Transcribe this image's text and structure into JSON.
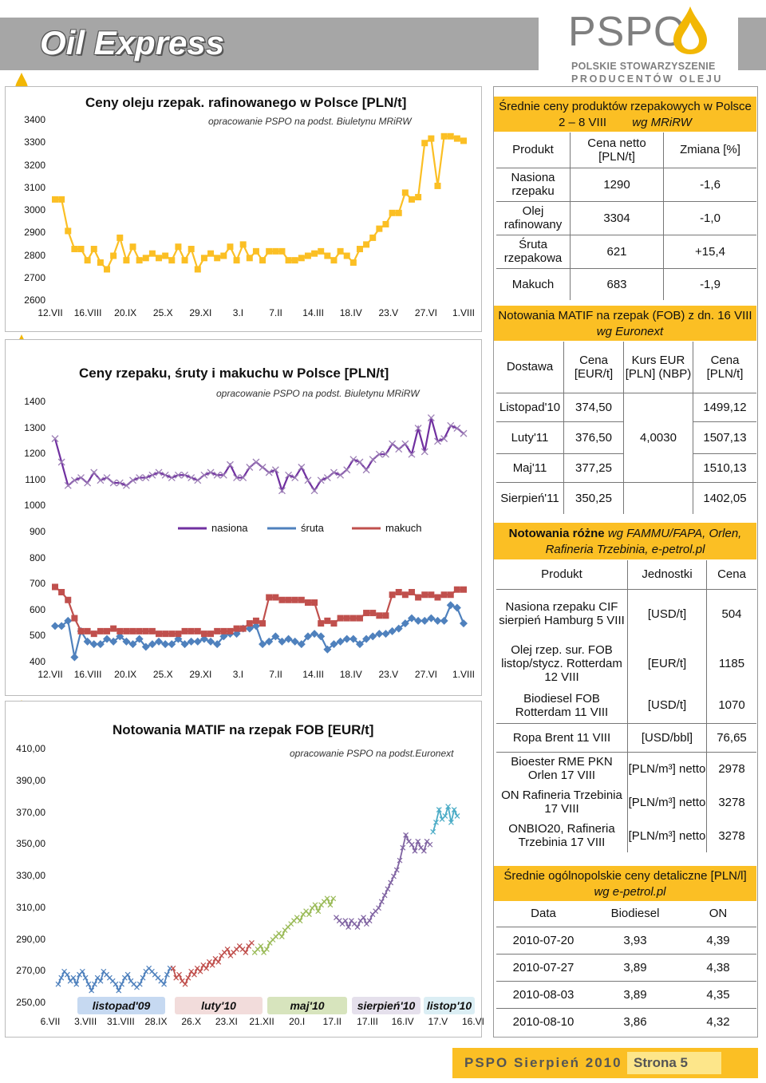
{
  "header": {
    "title": "Oil Express",
    "logo": "PSPO",
    "logo_sub1": "POLSKIE STOWARZYSZENIE",
    "logo_sub2": "PRODUCENTÓW OLEJU"
  },
  "chart1": {
    "title": "Ceny oleju rzepak. rafinowanego w Polsce [PLN/t]",
    "note": "opracowanie PSPO na podst. Biuletynu MRiRW",
    "chart_data": {
      "type": "line",
      "yticks": [
        "3400",
        "3300",
        "3200",
        "3100",
        "3000",
        "2900",
        "2800",
        "2700",
        "2600"
      ],
      "xticks": [
        "12.VII",
        "16.VIII",
        "20.IX",
        "25.X",
        "29.XI",
        "3.I",
        "7.II",
        "14.III",
        "18.IV",
        "23.V",
        "27.VI",
        "1.VIII"
      ],
      "ylim": [
        2600,
        3400
      ],
      "series": [
        {
          "values": [
            3050,
            3050,
            2910,
            2830,
            2830,
            2780,
            2830,
            2770,
            2740,
            2800,
            2880,
            2780,
            2840,
            2780,
            2790,
            2810,
            2790,
            2800,
            2780,
            2840,
            2780,
            2830,
            2740,
            2790,
            2810,
            2790,
            2800,
            2840,
            2780,
            2850,
            2790,
            2820,
            2780,
            2820,
            2820,
            2820,
            2780,
            2780,
            2790,
            2800,
            2810,
            2820,
            2800,
            2780,
            2820,
            2800,
            2770,
            2830,
            2850,
            2880,
            2920,
            2940,
            2990,
            2990,
            3080,
            3050,
            3060,
            3300,
            3320,
            3110,
            3330,
            3330,
            3320,
            3310
          ]
        }
      ]
    }
  },
  "chart2": {
    "title": "Ceny rzepaku, śruty i makuchu w Polsce [PLN/t]",
    "note": "opracowanie PSPO na podst. Biuletynu MRiRW",
    "chart_data": {
      "type": "line",
      "yticks": [
        "1400",
        "1300",
        "1200",
        "1100",
        "1000",
        "900",
        "800",
        "700",
        "600",
        "500",
        "400"
      ],
      "xticks": [
        "12.VII",
        "16.VIII",
        "20.IX",
        "25.X",
        "29.XI",
        "3.I",
        "7.II",
        "14.III",
        "18.IV",
        "23.V",
        "27.VI",
        "1.VIII"
      ],
      "ylim": [
        400,
        1400
      ],
      "legend": [
        "nasiona",
        "śruta",
        "makuch"
      ],
      "series": [
        {
          "name": "nasiona",
          "color": "#7030a0",
          "values": [
            1260,
            1170,
            1080,
            1100,
            1110,
            1090,
            1130,
            1100,
            1110,
            1090,
            1090,
            1080,
            1100,
            1110,
            1110,
            1120,
            1130,
            1120,
            1110,
            1120,
            1120,
            1110,
            1100,
            1120,
            1130,
            1120,
            1120,
            1160,
            1110,
            1110,
            1150,
            1170,
            1150,
            1130,
            1140,
            1060,
            1120,
            1110,
            1150,
            1100,
            1060,
            1100,
            1110,
            1130,
            1120,
            1140,
            1180,
            1170,
            1140,
            1180,
            1200,
            1200,
            1240,
            1220,
            1240,
            1200,
            1300,
            1210,
            1340,
            1250,
            1260,
            1310,
            1300,
            1280
          ]
        },
        {
          "name": "śruta",
          "color": "#4f81bd",
          "values": [
            540,
            540,
            560,
            420,
            520,
            480,
            470,
            470,
            490,
            480,
            500,
            480,
            470,
            490,
            460,
            470,
            480,
            470,
            470,
            490,
            470,
            480,
            480,
            490,
            480,
            470,
            500,
            510,
            510,
            530,
            530,
            540,
            470,
            480,
            500,
            480,
            490,
            480,
            470,
            500,
            510,
            500,
            450,
            470,
            480,
            490,
            490,
            470,
            490,
            500,
            510,
            510,
            520,
            530,
            550,
            570,
            560,
            560,
            570,
            560,
            560,
            620,
            610,
            550
          ]
        },
        {
          "name": "makuch",
          "color": "#c0504d",
          "values": [
            690,
            670,
            640,
            570,
            520,
            520,
            510,
            520,
            520,
            530,
            520,
            520,
            520,
            520,
            520,
            520,
            510,
            510,
            510,
            510,
            520,
            520,
            520,
            510,
            510,
            520,
            520,
            520,
            530,
            530,
            550,
            560,
            550,
            650,
            650,
            640,
            640,
            640,
            640,
            630,
            630,
            550,
            560,
            550,
            570,
            570,
            570,
            570,
            590,
            590,
            580,
            580,
            660,
            670,
            660,
            670,
            650,
            660,
            660,
            650,
            660,
            660,
            680,
            680
          ]
        }
      ]
    }
  },
  "chart3": {
    "title": "Notowania MATIF na rzepak FOB [EUR/t]",
    "note": "opracowanie PSPO na podst.Euronext",
    "chart_data": {
      "type": "line",
      "yticks": [
        "410,00",
        "390,00",
        "370,00",
        "350,00",
        "330,00",
        "310,00",
        "290,00",
        "270,00",
        "250,00"
      ],
      "xticks": [
        "6.VII",
        "3.VIII",
        "31.VIII",
        "28.IX",
        "26.X",
        "23.XI",
        "21.XII",
        "20.I",
        "17.II",
        "17.III",
        "16.IV",
        "17.V",
        "16.VI"
      ],
      "ylim": [
        250,
        410
      ],
      "periods": [
        "listopad'09",
        "luty'10",
        "maj'10",
        "sierpień'10",
        "listop'10"
      ]
    }
  },
  "section1": {
    "title": "Średnie ceny produktów rzepakowych w Polsce 2 – 8 VIII",
    "source": "wg MRiRW",
    "headers": [
      "Produkt",
      "Cena netto [PLN/t]",
      "Zmiana [%]"
    ],
    "rows": [
      {
        "name": "Nasiona rzepaku",
        "price": "1290",
        "change": "-1,6"
      },
      {
        "name": "Olej rafinowany",
        "price": "3304",
        "change": "-1,0"
      },
      {
        "name": "Śruta rzepakowa",
        "price": "621",
        "change": "+15,4"
      },
      {
        "name": "Makuch",
        "price": "683",
        "change": "-1,9"
      }
    ]
  },
  "section2": {
    "title": "Notowania MATIF na rzepak (FOB) z dn. 16 VIII",
    "source": "wg Euronext",
    "headers": [
      "Dostawa",
      "Cena [EUR/t]",
      "Kurs EUR [PLN] (NBP)",
      "Cena [PLN/t]"
    ],
    "kurs": "4,0030",
    "rows": [
      {
        "dostawa": "Listopad'10",
        "eur": "374,50",
        "pln": "1499,12"
      },
      {
        "dostawa": "Luty'11",
        "eur": "376,50",
        "pln": "1507,13"
      },
      {
        "dostawa": "Maj'11",
        "eur": "377,25",
        "pln": "1510,13"
      },
      {
        "dostawa": "Sierpień'11",
        "eur": "350,25",
        "pln": "1402,05"
      }
    ]
  },
  "section3": {
    "title": "Notowania różne",
    "source": "wg FAMMU/FAPA, Orlen, Rafineria Trzebinia, e-petrol.pl",
    "headers": [
      "Produkt",
      "Jednostki",
      "Cena"
    ],
    "rows": [
      {
        "product": "Nasiona rzepaku CIF sierpień Hamburg 5 VIII",
        "unit": "[USD/t]",
        "price": "504"
      },
      {
        "product": "Olej rzep. sur. FOB listop/stycz. Rotterdam 12 VIII",
        "unit": "[EUR/t]",
        "price": "1185"
      },
      {
        "product": "Biodiesel FOB Rotterdam 11 VIII",
        "unit": "[USD/t]",
        "price": "1070"
      },
      {
        "product": "Ropa Brent 11 VIII",
        "unit": "[USD/bbl]",
        "price": "76,65"
      },
      {
        "product": "Bioester RME PKN Orlen 17 VIII",
        "unit": "[PLN/m³] netto",
        "price": "2978"
      },
      {
        "product": "ON Rafineria Trzebinia 17 VIII",
        "unit": "[PLN/m³] netto",
        "price": "3278"
      },
      {
        "product": "ONBIO20, Rafineria Trzebinia 17 VIII",
        "unit": "[PLN/m³] netto",
        "price": "3278"
      }
    ]
  },
  "section4": {
    "title": "Średnie ogólnopolskie ceny detaliczne [PLN/l]",
    "source": "wg e-petrol.pl",
    "headers": [
      "Data",
      "Biodiesel",
      "ON"
    ],
    "rows": [
      {
        "date": "2010-07-20",
        "bio": "3,93",
        "on": "4,39"
      },
      {
        "date": "2010-07-27",
        "bio": "3,89",
        "on": "4,38"
      },
      {
        "date": "2010-08-03",
        "bio": "3,89",
        "on": "4,35"
      },
      {
        "date": "2010-08-10",
        "bio": "3,86",
        "on": "4,32"
      }
    ]
  },
  "footer": {
    "left": "PSPO Sierpień 2010",
    "right": "Strona 5"
  }
}
